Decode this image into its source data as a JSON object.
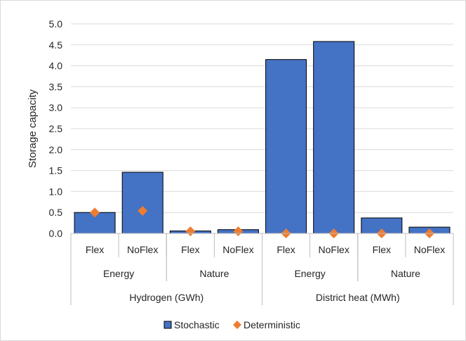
{
  "chart_data": {
    "type": "bar",
    "title": "",
    "ylabel": "Storage capacity",
    "xlabel": "",
    "ylim": [
      0,
      5.0
    ],
    "y_ticks": [
      "0.0",
      "0.5",
      "1.0",
      "1.5",
      "2.0",
      "2.5",
      "3.0",
      "3.5",
      "4.0",
      "4.5",
      "5.0"
    ],
    "grid": true,
    "legend_position": "bottom",
    "categories": [
      "Flex",
      "NoFlex",
      "Flex",
      "NoFlex",
      "Flex",
      "NoFlex",
      "Flex",
      "NoFlex"
    ],
    "scenario_groups": [
      {
        "label": "Energy",
        "span": 2
      },
      {
        "label": "Nature",
        "span": 2
      },
      {
        "label": "Energy",
        "span": 2
      },
      {
        "label": "Nature",
        "span": 2
      }
    ],
    "carrier_groups": [
      {
        "label": "Hydrogen (GWh)",
        "span": 4
      },
      {
        "label": "District heat (MWh)",
        "span": 4
      }
    ],
    "series": [
      {
        "name": "Stochastic",
        "kind": "bar",
        "color": "#4472c4",
        "values": [
          0.5,
          1.46,
          0.06,
          0.09,
          4.15,
          4.58,
          0.37,
          0.15
        ]
      },
      {
        "name": "Deterministic",
        "kind": "marker-diamond",
        "color": "#ed7d31",
        "values": [
          0.5,
          0.54,
          0.05,
          0.05,
          0.0,
          0.0,
          0.0,
          0.0
        ]
      }
    ]
  }
}
